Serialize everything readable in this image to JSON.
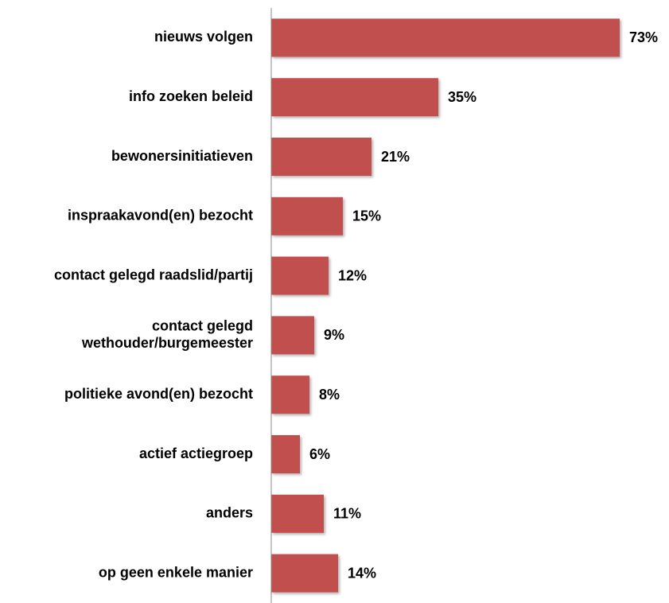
{
  "chart_data": {
    "type": "barh",
    "categories": [
      "nieuws volgen",
      "info zoeken beleid",
      "bewonersinitiatieven",
      "inspraakavond(en) bezocht",
      "contact gelegd raadslid/partij",
      "contact gelegd\nwethouder/burgemeester",
      "politieke avond(en) bezocht",
      "actief actiegroep",
      "anders",
      "op geen enkele manier"
    ],
    "values": [
      73,
      35,
      21,
      15,
      12,
      9,
      8,
      6,
      11,
      14
    ],
    "value_labels": [
      "73%",
      "35%",
      "21%",
      "15%",
      "12%",
      "9%",
      "8%",
      "6%",
      "11%",
      "14%"
    ],
    "color": "#c0504d",
    "xlim": [
      0,
      80
    ]
  }
}
